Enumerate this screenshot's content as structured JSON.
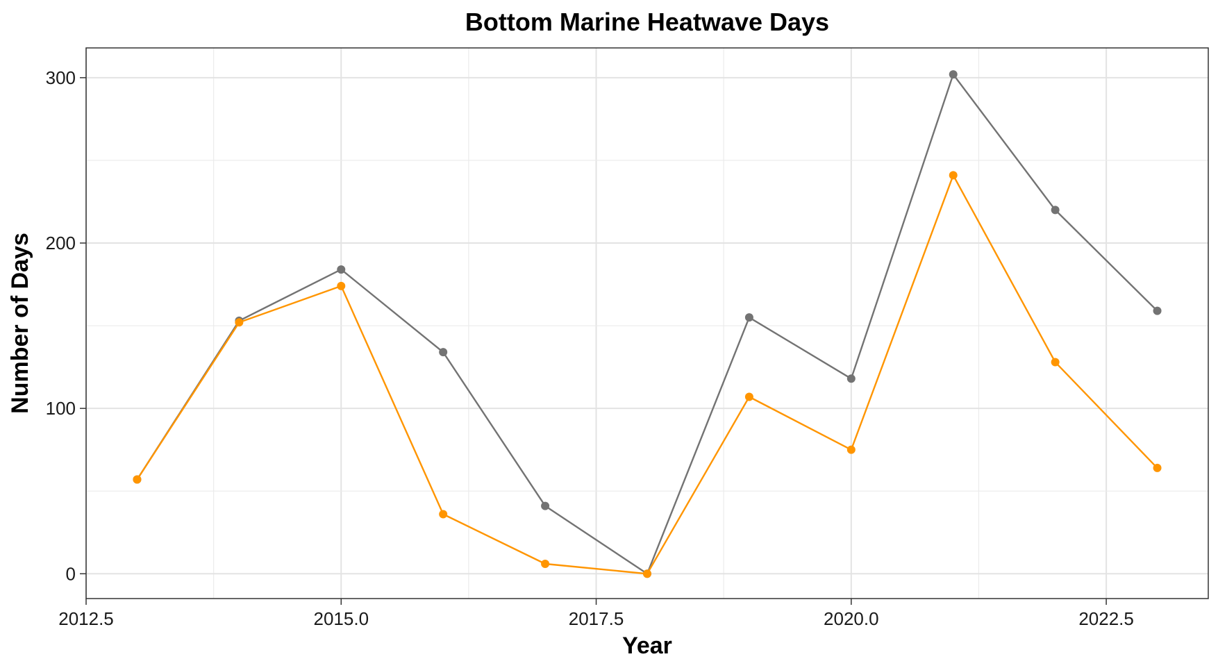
{
  "chart_data": {
    "type": "line",
    "title": "Bottom Marine Heatwave Days",
    "xlabel": "Year",
    "ylabel": "Number of Days",
    "xlim": [
      2012.5,
      2023.5
    ],
    "ylim": [
      -15,
      318
    ],
    "x_ticks": [
      2012.5,
      2015.0,
      2017.5,
      2020.0,
      2022.5
    ],
    "x_tick_labels": [
      "2012.5",
      "2015.0",
      "2017.5",
      "2020.0",
      "2022.5"
    ],
    "y_ticks": [
      0,
      100,
      200,
      300
    ],
    "y_tick_labels": [
      "0",
      "100",
      "200",
      "300"
    ],
    "x": [
      2013,
      2014,
      2015,
      2016,
      2017,
      2018,
      2019,
      2020,
      2021,
      2022,
      2023
    ],
    "series": [
      {
        "color": "#737373",
        "values": [
          57,
          153,
          184,
          134,
          41,
          0,
          155,
          118,
          302,
          220,
          159
        ]
      },
      {
        "color": "#FF9500",
        "values": [
          57,
          152,
          174,
          36,
          6,
          0,
          107,
          75,
          241,
          128,
          64
        ]
      }
    ],
    "grid": true,
    "legend": "none"
  }
}
